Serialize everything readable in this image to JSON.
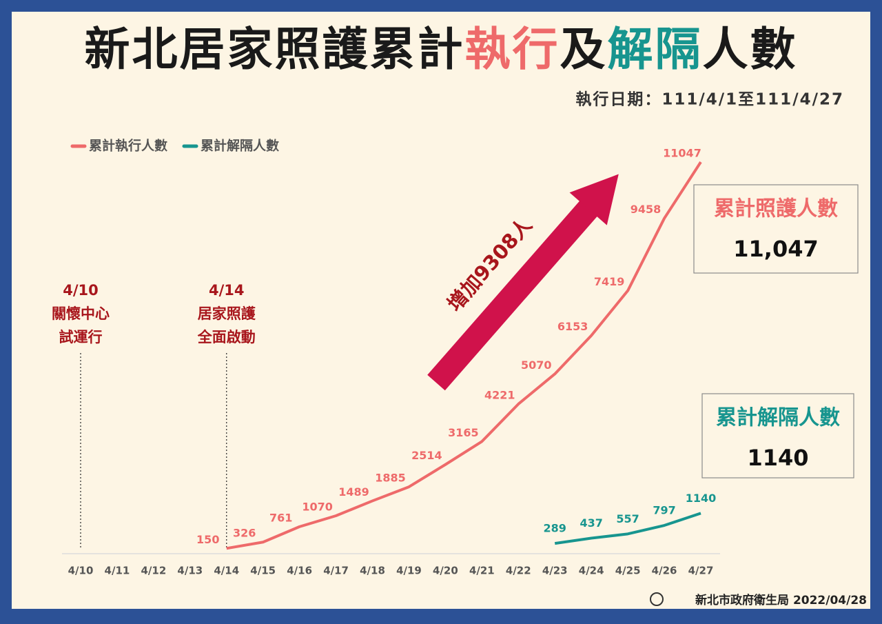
{
  "chart_data": {
    "type": "line",
    "title": [
      {
        "text": "新北居家照護累計",
        "color": "#1a1a1a"
      },
      {
        "text": "執行",
        "color": "#ee6a6a"
      },
      {
        "text": "及",
        "color": "#1a1a1a"
      },
      {
        "text": "解隔",
        "color": "#17958f"
      },
      {
        "text": "人數",
        "color": "#1a1a1a"
      }
    ],
    "subtitle": "執行日期：111/4/1至111/4/27",
    "categories": [
      "4/10",
      "4/11",
      "4/12",
      "4/13",
      "4/14",
      "4/15",
      "4/16",
      "4/17",
      "4/18",
      "4/19",
      "4/20",
      "4/21",
      "4/22",
      "4/23",
      "4/24",
      "4/25",
      "4/26",
      "4/27"
    ],
    "series": [
      {
        "name": "累計執行人數",
        "color": "#ee6a6a",
        "values": [
          null,
          null,
          null,
          null,
          150,
          326,
          761,
          1070,
          1489,
          1885,
          2514,
          3165,
          4221,
          5070,
          6153,
          7419,
          9458,
          11047
        ]
      },
      {
        "name": "累計解隔人數",
        "color": "#17958f",
        "values": [
          null,
          null,
          null,
          null,
          null,
          null,
          null,
          null,
          null,
          null,
          null,
          null,
          null,
          289,
          437,
          557,
          797,
          1140
        ]
      }
    ],
    "legend": "top-left",
    "annotations": [
      {
        "lines": [
          "4/10",
          "關懷中心",
          "試運行"
        ]
      },
      {
        "lines": [
          "4/14",
          "居家照護",
          "全面啟動"
        ]
      }
    ],
    "arrow_label": "增加9308人",
    "boxes": [
      {
        "label": "累計照護人數",
        "value": "11,047",
        "color": "#ee6a6a"
      },
      {
        "label": "累計解隔人數",
        "value": "1140",
        "color": "#17958f"
      }
    ],
    "footer": "新北市政府衛生局 2022/04/28"
  }
}
